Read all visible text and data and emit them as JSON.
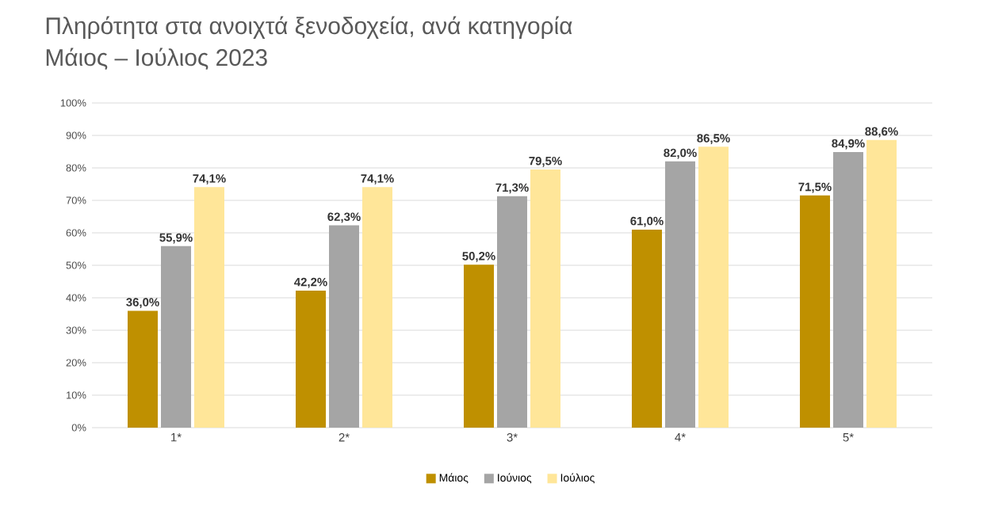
{
  "chart_data": {
    "type": "bar",
    "title": "Πληρότητα στα ανοιχτά ξενοδοχεία, ανά κατηγορία",
    "subtitle": "Μάιος – Ιούλιος 2023",
    "categories": [
      "1*",
      "2*",
      "3*",
      "4*",
      "5*"
    ],
    "series": [
      {
        "name": "Μάιος",
        "color": "#bf9000",
        "values": [
          36.0,
          42.2,
          50.2,
          61.0,
          71.5
        ],
        "value_labels": [
          "36,0%",
          "42,2%",
          "50,2%",
          "61,0%",
          "71,5%"
        ]
      },
      {
        "name": "Ιούνιος",
        "color": "#a5a5a5",
        "values": [
          55.9,
          62.3,
          71.3,
          82.0,
          84.9
        ],
        "value_labels": [
          "55,9%",
          "62,3%",
          "71,3%",
          "82,0%",
          "84,9%"
        ]
      },
      {
        "name": "Ιούλιος",
        "color": "#ffe699",
        "values": [
          74.1,
          74.1,
          79.5,
          86.5,
          88.6
        ],
        "value_labels": [
          "74,1%",
          "74,1%",
          "79,5%",
          "86,5%",
          "88,6%"
        ]
      }
    ],
    "ylim": [
      0,
      100
    ],
    "yticks": [
      {
        "value": 0,
        "label": "0%"
      },
      {
        "value": 10,
        "label": "10%"
      },
      {
        "value": 20,
        "label": "20%"
      },
      {
        "value": 30,
        "label": "30%"
      },
      {
        "value": 40,
        "label": "40%"
      },
      {
        "value": 50,
        "label": "50%"
      },
      {
        "value": 60,
        "label": "60%"
      },
      {
        "value": 70,
        "label": "70%"
      },
      {
        "value": 80,
        "label": "80%"
      },
      {
        "value": 90,
        "label": "90%"
      },
      {
        "value": 100,
        "label": "100%"
      }
    ],
    "grid": "y",
    "legend": "bottom"
  }
}
